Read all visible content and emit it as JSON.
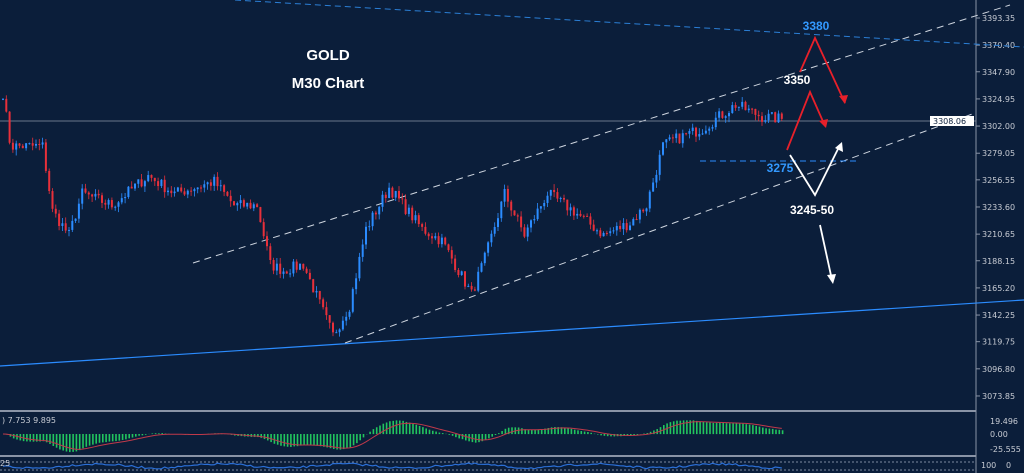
{
  "chart_data": {
    "type": "candlestick",
    "title": "GOLD",
    "subtitle": "M30 Chart",
    "ylim": [
      3060,
      3405
    ],
    "y_ticks": [
      "3393.35",
      "3370.40",
      "3347.90",
      "3324.95",
      "3302.00",
      "3279.05",
      "3256.55",
      "3233.60",
      "3210.65",
      "3188.15",
      "3165.20",
      "3142.25",
      "3119.75",
      "3096.80",
      "3073.85"
    ],
    "current_price": "3308.06",
    "bars": [
      0,
      2,
      3,
      12,
      15,
      20,
      24,
      33,
      44,
      52,
      64,
      70,
      77,
      81,
      85,
      91,
      100,
      105,
      110,
      117,
      127,
      133,
      142,
      146,
      152,
      158,
      165,
      173,
      182,
      190,
      195,
      200,
      203,
      212,
      222,
      230,
      236
    ],
    "close_waypoints": [
      3330,
      3290,
      3285,
      3285,
      3230,
      3210,
      3245,
      3235,
      3260,
      3245,
      3255,
      3235,
      3235,
      3185,
      3180,
      3185,
      3125,
      3150,
      3215,
      3250,
      3215,
      3205,
      3160,
      3190,
      3245,
      3210,
      3245,
      3230,
      3210,
      3220,
      3235,
      3285,
      3290,
      3300,
      3320,
      3310,
      3308
    ],
    "annotations": [
      {
        "text": "3380",
        "color": "#3399ff"
      },
      {
        "text": "3350",
        "color": "#ffffff"
      },
      {
        "text": "3275",
        "color": "#3399ff"
      },
      {
        "text": "3245-50",
        "color": "#ffffff"
      }
    ],
    "macd": {
      "label": ") 7.753 9.895",
      "ticks": [
        "19.496",
        "0.00",
        "-25.555"
      ]
    },
    "lower": {
      "label": "25",
      "ticks": [
        "100",
        "0"
      ]
    },
    "colors": {
      "bg": "#0b1e3a",
      "up": "#2b8cff",
      "down": "#e8303a",
      "hist": "#22c55e",
      "signal": "#c0394a",
      "up_arrow": "#e8202a"
    }
  }
}
